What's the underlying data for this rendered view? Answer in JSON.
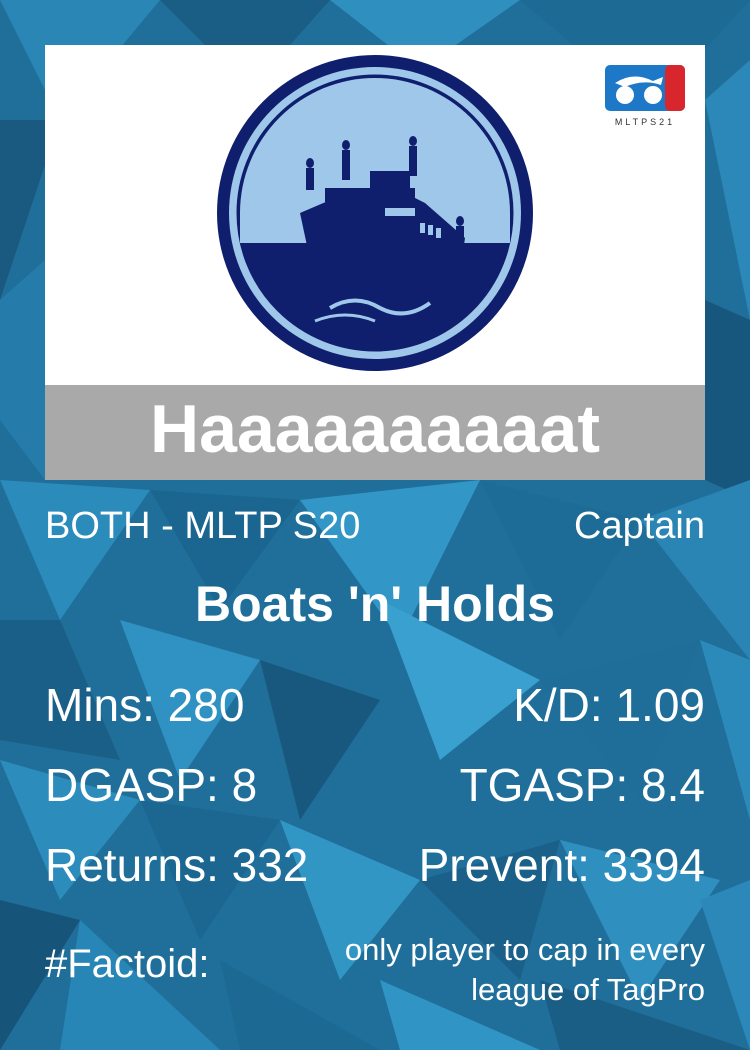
{
  "player_name": "Haaaaaaaaaat",
  "subtitle_left": "BOTH - MLTP S20",
  "subtitle_right": "Captain",
  "team_name": "Boats 'n' Holds",
  "stats": {
    "mins": "Mins: 280",
    "kd": "K/D: 1.09",
    "dgasp": "DGASP: 8",
    "tgasp": "TGASP: 8.4",
    "returns": "Returns: 332",
    "prevent": "Prevent: 3394"
  },
  "factoid": {
    "label": "#Factoid:",
    "text": "only player to cap in every league of TagPro"
  },
  "league_logo_text": "MLTPS21",
  "colors": {
    "background_blue": "#1f6f9a",
    "name_bar": "#a9a9a9",
    "emblem_dark": "#0f1f6e",
    "emblem_light": "#9ec7ea",
    "logo_blue": "#1e78c8",
    "logo_red": "#d9262c"
  },
  "icons": [
    "team-boat-emblem",
    "league-logo"
  ]
}
